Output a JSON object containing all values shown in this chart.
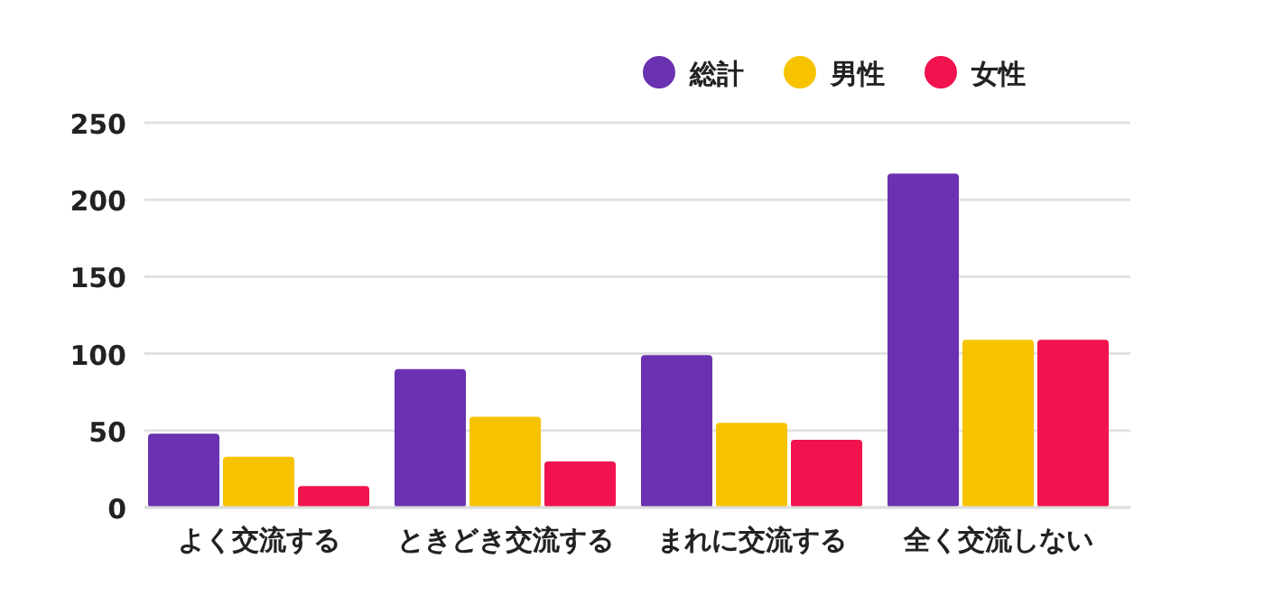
{
  "chart_data": {
    "type": "bar",
    "categories": [
      "よく交流する",
      "ときどき交流する",
      "まれに交流する",
      "全く交流しない"
    ],
    "series": [
      {
        "name": "総計",
        "color": "#6a31b0",
        "values": [
          48,
          90,
          99,
          217
        ]
      },
      {
        "name": "男性",
        "color": "#f7c300",
        "values": [
          33,
          59,
          55,
          109
        ]
      },
      {
        "name": "女性",
        "color": "#f0134d",
        "values": [
          14,
          30,
          44,
          109
        ]
      }
    ],
    "ylim": [
      0,
      250
    ],
    "yticks": [
      0,
      50,
      100,
      150,
      200,
      250
    ],
    "grid": "y",
    "legend": "top"
  }
}
